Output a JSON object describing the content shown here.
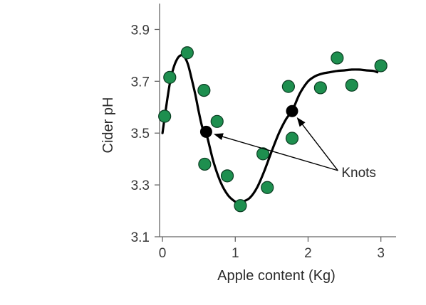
{
  "chart_data": {
    "type": "scatter",
    "xlabel": "Apple content (Kg)",
    "ylabel": "Cider pH",
    "xlim": [
      -0.04,
      3.15
    ],
    "ylim": [
      3.1,
      4.0
    ],
    "x_ticks": [
      "0",
      "1",
      "2",
      "3"
    ],
    "y_ticks": [
      "3.1",
      "3.3",
      "3.5",
      "3.7",
      "3.9"
    ],
    "grid": false,
    "points": {
      "x": [
        0.03,
        0.1,
        0.34,
        0.57,
        0.58,
        0.75,
        0.89,
        1.07,
        1.38,
        1.44,
        1.73,
        1.78,
        2.17,
        2.4,
        2.6,
        3.0
      ],
      "y": [
        3.565,
        3.715,
        3.81,
        3.665,
        3.38,
        3.545,
        3.335,
        3.22,
        3.42,
        3.29,
        3.68,
        3.48,
        3.675,
        3.79,
        3.685,
        3.76
      ],
      "color": "#1e8f4f"
    },
    "fit_curve": {
      "x": [
        0,
        0.05,
        0.1,
        0.15,
        0.2,
        0.25,
        0.3,
        0.35,
        0.4,
        0.45,
        0.5,
        0.55,
        0.6,
        0.7,
        0.8,
        0.9,
        1.0,
        1.05,
        1.1,
        1.2,
        1.3,
        1.4,
        1.5,
        1.6,
        1.7,
        1.78,
        1.85,
        1.9,
        2.0,
        2.1,
        2.2,
        2.3,
        2.4,
        2.5,
        2.6,
        2.7,
        2.8,
        2.9,
        2.95
      ],
      "y": [
        3.5,
        3.6,
        3.69,
        3.75,
        3.785,
        3.8,
        3.795,
        3.765,
        3.71,
        3.65,
        3.58,
        3.52,
        3.5,
        3.39,
        3.31,
        3.26,
        3.235,
        3.23,
        3.235,
        3.25,
        3.29,
        3.355,
        3.43,
        3.5,
        3.555,
        3.585,
        3.63,
        3.66,
        3.7,
        3.72,
        3.73,
        3.735,
        3.74,
        3.742,
        3.745,
        3.745,
        3.742,
        3.74,
        3.735
      ],
      "color": "#000000"
    },
    "knots": {
      "x": [
        0.6,
        1.78
      ],
      "y": [
        3.505,
        3.585
      ],
      "color": "#000000"
    },
    "annotation": {
      "text": "Knots",
      "x": 2.4,
      "y": 3.35
    }
  }
}
